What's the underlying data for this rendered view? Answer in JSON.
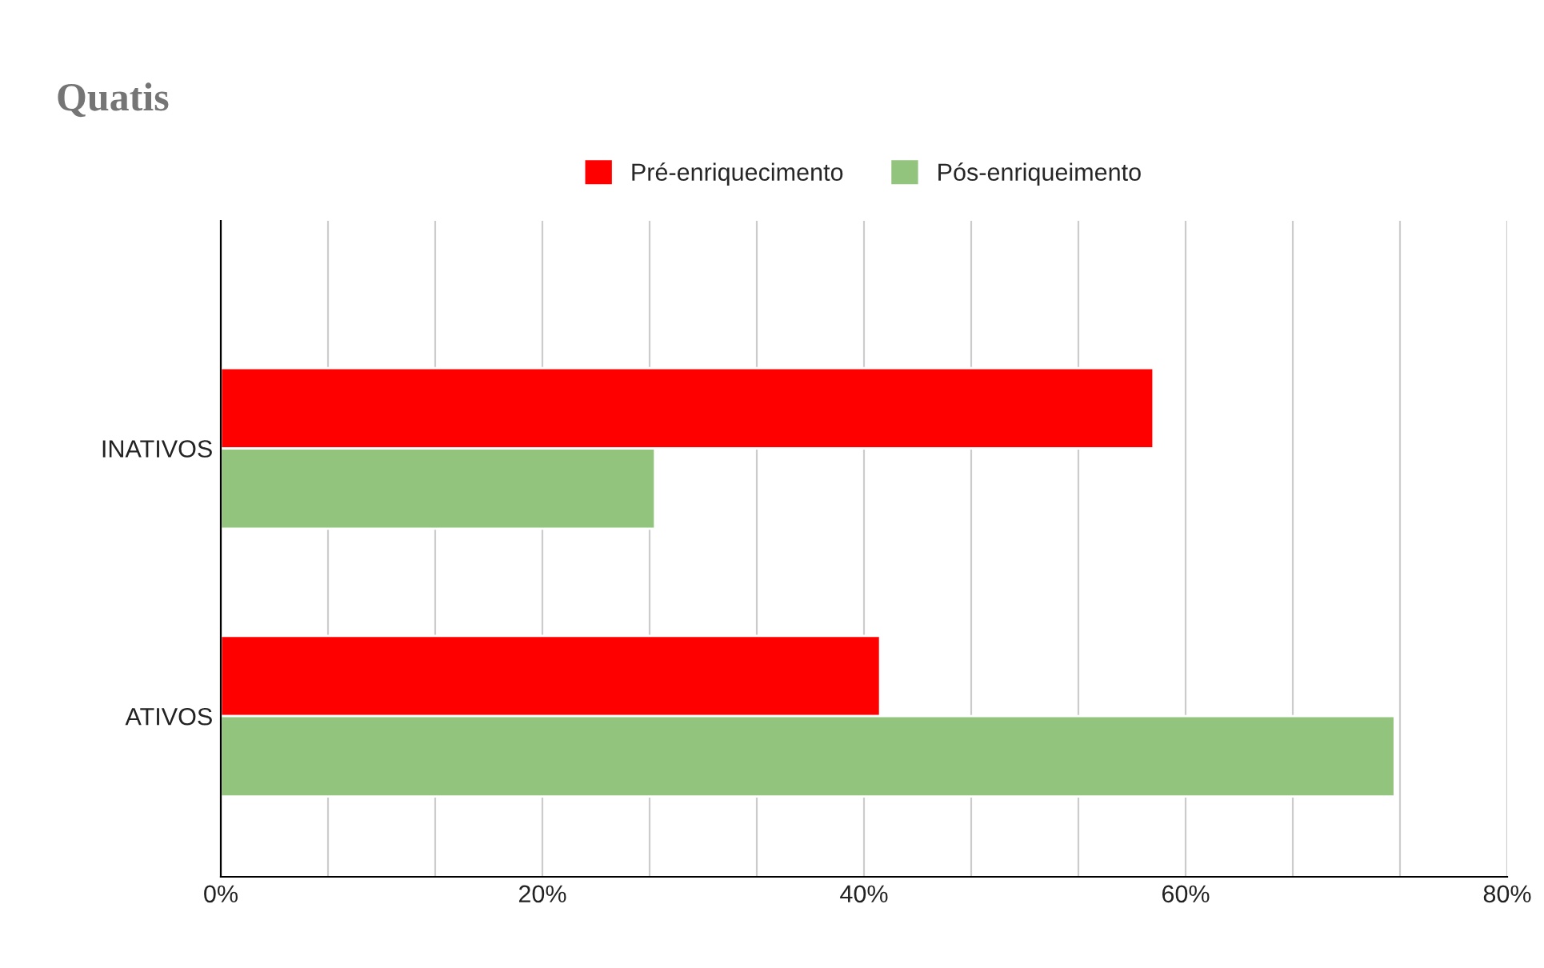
{
  "chart_data": {
    "type": "bar",
    "orientation": "horizontal",
    "title": "Quatis",
    "categories": [
      "INATIVOS",
      "ATIVOS"
    ],
    "series": [
      {
        "name": "Pré-enriquecimento",
        "color": "#ff0000",
        "values": [
          58,
          41
        ]
      },
      {
        "name": "Pós-enriqueimento",
        "color": "#93c47d",
        "values": [
          27,
          73
        ]
      }
    ],
    "xlim": [
      0,
      80
    ],
    "xticks": [
      {
        "value": 0,
        "label": "0%"
      },
      {
        "value": 6.667,
        "label": null
      },
      {
        "value": 13.333,
        "label": null
      },
      {
        "value": 20,
        "label": "20%"
      },
      {
        "value": 26.667,
        "label": null
      },
      {
        "value": 33.333,
        "label": null
      },
      {
        "value": 40,
        "label": "40%"
      },
      {
        "value": 46.667,
        "label": null
      },
      {
        "value": 53.333,
        "label": null
      },
      {
        "value": 60,
        "label": "60%"
      },
      {
        "value": 66.667,
        "label": null
      },
      {
        "value": 73.333,
        "label": null
      },
      {
        "value": 80,
        "label": "80%"
      }
    ],
    "grid": "x",
    "legend": "top"
  }
}
